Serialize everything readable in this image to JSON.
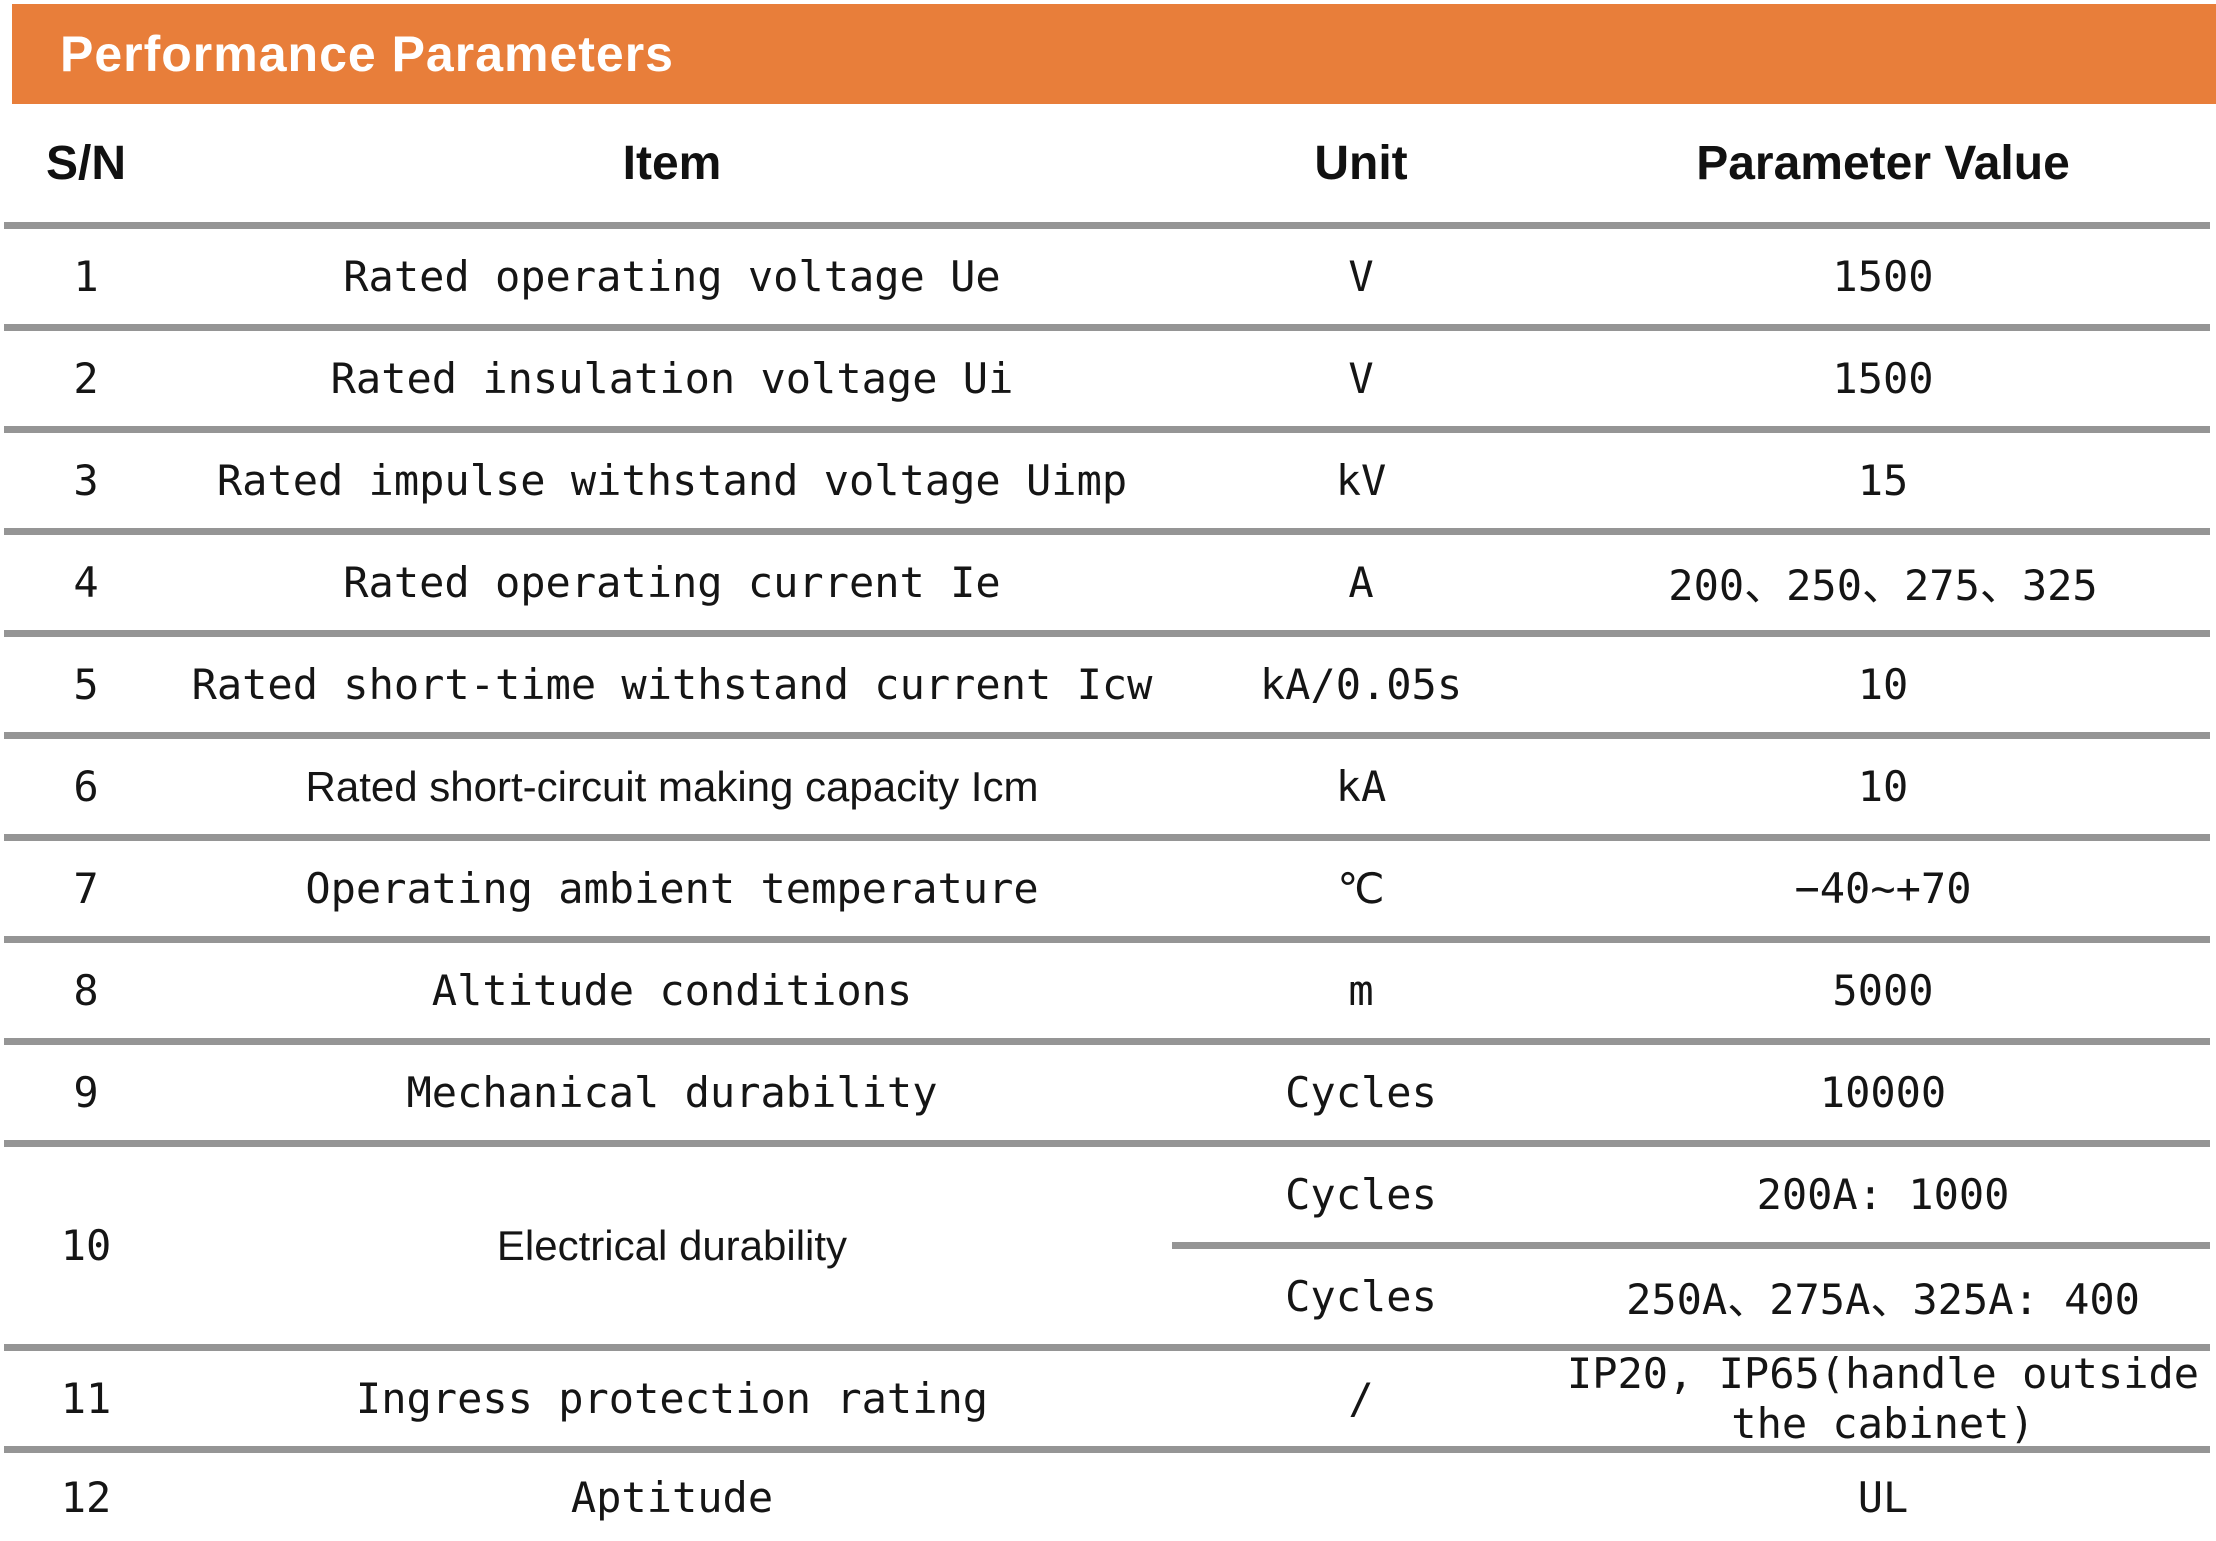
{
  "title": "Performance Parameters",
  "colors": {
    "accent_orange": "#E87E3A",
    "divider_gray": "#959595",
    "title_text": "#FFFFFF",
    "body_text": "#151515"
  },
  "columns": [
    "S/N",
    "Item",
    "Unit",
    "Parameter Value"
  ],
  "rows": [
    {
      "sn": "1",
      "item": "Rated operating voltage Ue",
      "unit": "V",
      "value": "1500"
    },
    {
      "sn": "2",
      "item": "Rated insulation voltage Ui",
      "unit": "V",
      "value": "1500"
    },
    {
      "sn": "3",
      "item": "Rated impulse withstand voltage Uimp",
      "unit": "kV",
      "value": "15"
    },
    {
      "sn": "4",
      "item": "Rated operating current Ie",
      "unit": "A",
      "value": "200、250、275、325"
    },
    {
      "sn": "5",
      "item": "Rated short-time withstand current Icw",
      "unit": "kA/0.05s",
      "value": "10"
    },
    {
      "sn": "6",
      "item": "Rated short-circuit making capacity Icm",
      "unit": "kA",
      "value": "10"
    },
    {
      "sn": "7",
      "item": "Operating ambient temperature",
      "unit": "℃",
      "value": "−40~+70"
    },
    {
      "sn": "8",
      "item": "Altitude conditions",
      "unit": "m",
      "value": "5000"
    },
    {
      "sn": "9",
      "item": "Mechanical durability",
      "unit": "Cycles",
      "value": "10000"
    },
    {
      "sn": "10",
      "item": "Electrical durability",
      "subrows": [
        {
          "unit": "Cycles",
          "value": "200A: 1000"
        },
        {
          "unit": "Cycles",
          "value": "250A、275A、325A: 400"
        }
      ]
    },
    {
      "sn": "11",
      "item": "Ingress protection rating",
      "unit": "/",
      "value": "IP20, IP65(handle outside the cabinet)"
    },
    {
      "sn": "12",
      "item": "Aptitude",
      "unit": "",
      "value": "UL"
    }
  ]
}
